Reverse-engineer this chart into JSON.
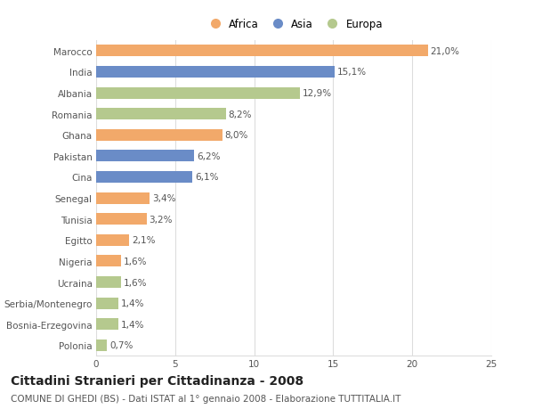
{
  "categories": [
    "Marocco",
    "India",
    "Albania",
    "Romania",
    "Ghana",
    "Pakistan",
    "Cina",
    "Senegal",
    "Tunisia",
    "Egitto",
    "Nigeria",
    "Ucraina",
    "Serbia/Montenegro",
    "Bosnia-Erzegovina",
    "Polonia"
  ],
  "values": [
    21.0,
    15.1,
    12.9,
    8.2,
    8.0,
    6.2,
    6.1,
    3.4,
    3.2,
    2.1,
    1.6,
    1.6,
    1.4,
    1.4,
    0.7
  ],
  "labels": [
    "21,0%",
    "15,1%",
    "12,9%",
    "8,2%",
    "8,0%",
    "6,2%",
    "6,1%",
    "3,4%",
    "3,2%",
    "2,1%",
    "1,6%",
    "1,6%",
    "1,4%",
    "1,4%",
    "0,7%"
  ],
  "continents": [
    "Africa",
    "Asia",
    "Europa",
    "Europa",
    "Africa",
    "Asia",
    "Asia",
    "Africa",
    "Africa",
    "Africa",
    "Africa",
    "Europa",
    "Europa",
    "Europa",
    "Europa"
  ],
  "colors": {
    "Africa": "#F2A96A",
    "Asia": "#6A8CC7",
    "Europa": "#B5C98E"
  },
  "legend_labels": [
    "Africa",
    "Asia",
    "Europa"
  ],
  "legend_colors": [
    "#F2A96A",
    "#6A8CC7",
    "#B5C98E"
  ],
  "xlim": [
    0,
    25
  ],
  "xticks": [
    0,
    5,
    10,
    15,
    20,
    25
  ],
  "title": "Cittadini Stranieri per Cittadinanza - 2008",
  "subtitle": "COMUNE DI GHEDI (BS) - Dati ISTAT al 1° gennaio 2008 - Elaborazione TUTTITALIA.IT",
  "background_color": "#ffffff",
  "bar_height": 0.55,
  "grid_color": "#dddddd",
  "title_fontsize": 10,
  "subtitle_fontsize": 7.5,
  "label_fontsize": 7.5,
  "tick_fontsize": 7.5,
  "legend_fontsize": 8.5
}
